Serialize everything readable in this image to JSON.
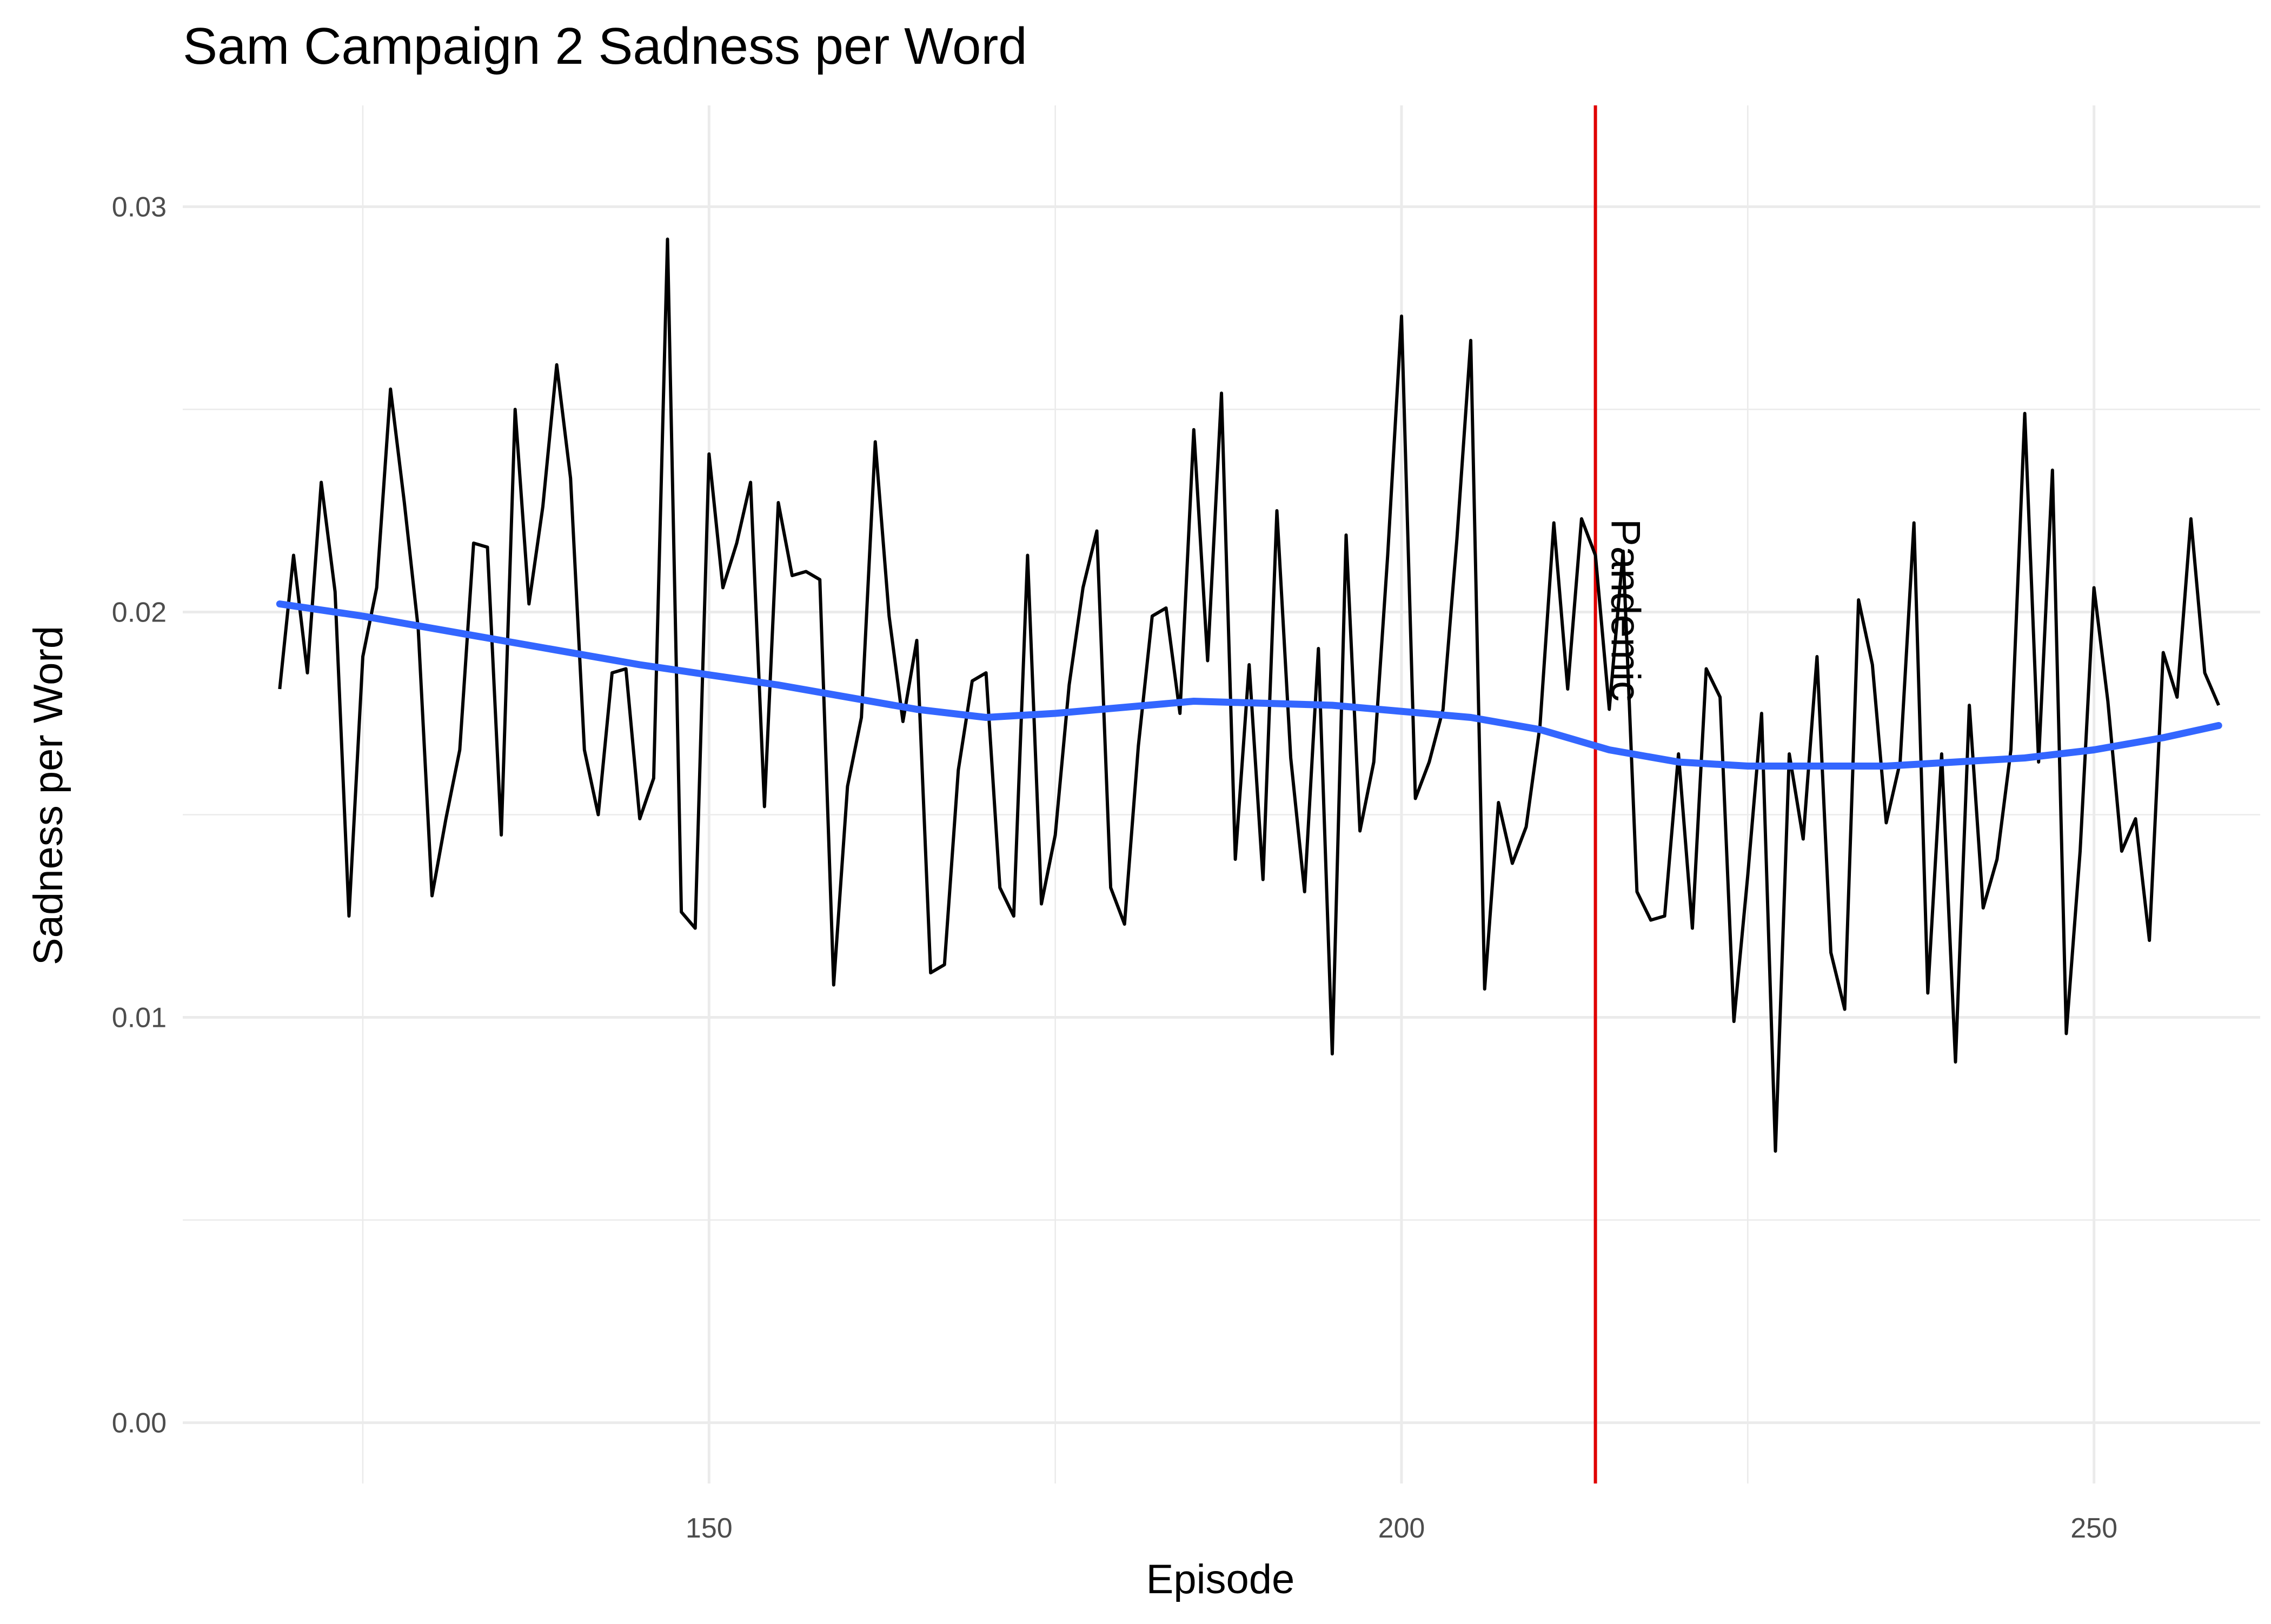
{
  "chart_data": {
    "type": "line",
    "title": "Sam Campaign 2 Sadness per Word",
    "xlabel": "Episode",
    "ylabel": "Sadness per Word",
    "xlim": [
      112,
      262
    ],
    "ylim": [
      -0.0015,
      0.0325
    ],
    "x_ticks": [
      150,
      200,
      250
    ],
    "x_tick_labels": [
      "150",
      "200",
      "250"
    ],
    "y_ticks": [
      0,
      0.01,
      0.02,
      0.03
    ],
    "y_tick_labels": [
      "0.00",
      "0.01",
      "0.02",
      "0.03"
    ],
    "grid": true,
    "legend": "none",
    "colors": {
      "series": "#000000",
      "smooth": "#3366FF",
      "vline": "#E00000",
      "grid": "#EBEBEB",
      "tick_text": "#4D4D4D"
    },
    "annotation": {
      "x": 214,
      "text": "Pandemic"
    },
    "series": [
      {
        "kind": "line",
        "x": [
          119,
          120,
          121,
          122,
          123,
          124,
          125,
          126,
          127,
          128,
          129,
          130,
          131,
          132,
          133,
          134,
          135,
          136,
          137,
          138,
          139,
          140,
          141,
          142,
          143,
          144,
          145,
          146,
          147,
          148,
          149,
          150,
          151,
          152,
          153,
          154,
          155,
          156,
          157,
          158,
          159,
          160,
          161,
          162,
          163,
          164,
          165,
          166,
          167,
          168,
          169,
          170,
          171,
          172,
          173,
          174,
          175,
          176,
          177,
          178,
          179,
          180,
          181,
          182,
          183,
          184,
          185,
          186,
          187,
          188,
          189,
          190,
          191,
          192,
          193,
          194,
          195,
          196,
          197,
          198,
          199,
          200,
          201,
          202,
          203,
          204,
          205,
          206,
          207,
          208,
          209,
          210,
          211,
          212,
          213,
          214,
          215,
          216,
          217,
          218,
          219,
          220,
          221,
          222,
          223,
          224,
          225,
          226,
          227,
          228,
          229,
          230,
          231,
          232,
          233,
          234,
          235,
          236,
          237,
          238,
          239,
          240,
          241,
          242,
          243,
          244,
          245,
          246,
          247,
          248,
          249,
          250,
          251,
          252,
          253,
          254,
          255,
          256,
          257,
          258,
          259
        ],
        "y": [
          0.0181,
          0.0214,
          0.0185,
          0.0232,
          0.0205,
          0.0125,
          0.0189,
          0.0206,
          0.0255,
          0.0227,
          0.0196,
          0.013,
          0.0149,
          0.0166,
          0.0217,
          0.0216,
          0.0145,
          0.025,
          0.0202,
          0.0226,
          0.0261,
          0.0233,
          0.0166,
          0.015,
          0.0185,
          0.0186,
          0.0149,
          0.0159,
          0.0292,
          0.0126,
          0.0122,
          0.0239,
          0.0206,
          0.0217,
          0.0232,
          0.0152,
          0.0227,
          0.0209,
          0.021,
          0.0208,
          0.0108,
          0.0157,
          0.0174,
          0.0242,
          0.0199,
          0.0173,
          0.0193,
          0.0111,
          0.0113,
          0.0161,
          0.0183,
          0.0185,
          0.0132,
          0.0125,
          0.0214,
          0.0128,
          0.0145,
          0.0182,
          0.0206,
          0.022,
          0.0132,
          0.0123,
          0.0167,
          0.0199,
          0.0201,
          0.0175,
          0.0245,
          0.0188,
          0.0254,
          0.0139,
          0.0187,
          0.0134,
          0.0225,
          0.0164,
          0.0131,
          0.0191,
          0.0091,
          0.0219,
          0.0146,
          0.0163,
          0.0214,
          0.0273,
          0.0154,
          0.0163,
          0.0176,
          0.0218,
          0.0267,
          0.0107,
          0.0153,
          0.0138,
          0.0147,
          0.0172,
          0.0222,
          0.0181,
          0.0223,
          0.0214,
          0.0176,
          0.0215,
          0.0131,
          0.0124,
          0.0125,
          0.0165,
          0.0122,
          0.0186,
          0.0179,
          0.0099,
          0.0135,
          0.0175,
          0.0067,
          0.0165,
          0.0144,
          0.0189,
          0.0116,
          0.0102,
          0.0203,
          0.0187,
          0.0148,
          0.0163,
          0.0222,
          0.0106,
          0.0165,
          0.0089,
          0.0177,
          0.0127,
          0.0139,
          0.0166,
          0.0249,
          0.0163,
          0.0235,
          0.0096,
          0.0141,
          0.0206,
          0.0178,
          0.0141,
          0.0149,
          0.0119,
          0.019,
          0.0179,
          0.0223,
          0.0185,
          0.0177
        ]
      },
      {
        "kind": "smooth",
        "x": [
          119,
          125,
          135,
          145,
          155,
          165,
          170,
          175,
          185,
          195,
          205,
          210,
          215,
          220,
          225,
          230,
          235,
          240,
          245,
          250,
          255,
          259
        ],
        "y": [
          0.0202,
          0.0199,
          0.0193,
          0.0187,
          0.0182,
          0.0176,
          0.0174,
          0.0175,
          0.0178,
          0.0177,
          0.0174,
          0.0171,
          0.0166,
          0.0163,
          0.0162,
          0.0162,
          0.0162,
          0.0163,
          0.0164,
          0.0166,
          0.0169,
          0.0172
        ]
      }
    ]
  }
}
